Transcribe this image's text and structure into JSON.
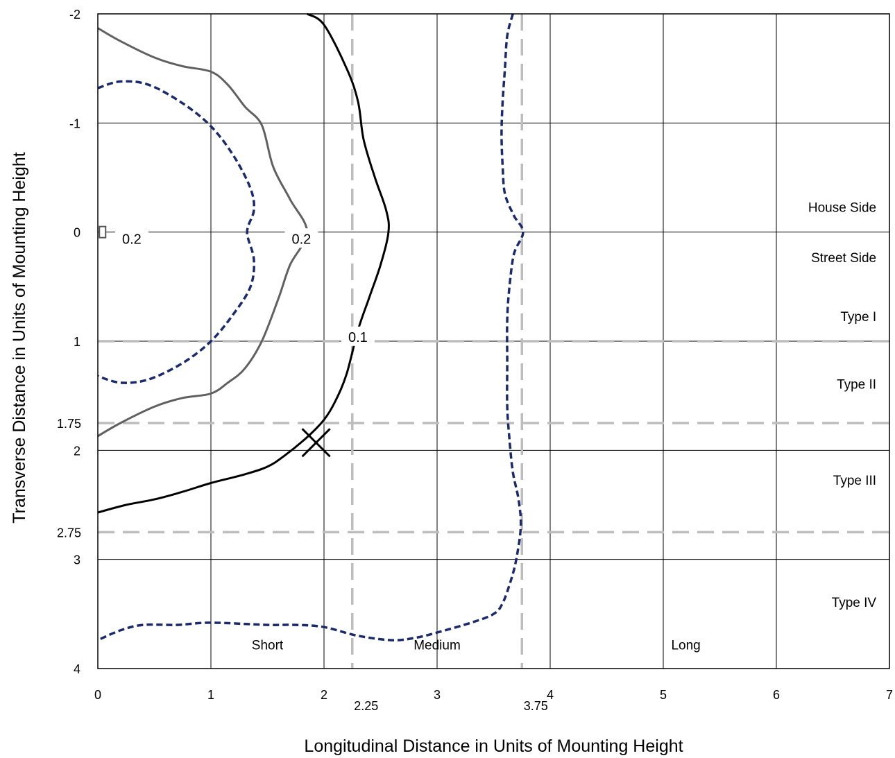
{
  "chart_data": {
    "type": "line",
    "xlabel": "Longitudinal Distance in Units of Mounting Height",
    "ylabel": "Transverse Distance in Units of Mounting Height",
    "xlim": [
      0,
      7
    ],
    "ylim": [
      -2,
      4
    ],
    "y_axis_inverted": true,
    "grid": true,
    "x_ticks": [
      "0",
      "1",
      "2",
      "3",
      "4",
      "5",
      "6",
      "7"
    ],
    "y_ticks": [
      "-2",
      "-1",
      "0",
      "1",
      "2",
      "3",
      "4"
    ],
    "x_extra_ticks": [
      {
        "value": 2.25,
        "label": "2.25"
      },
      {
        "value": 3.75,
        "label": "3.75"
      }
    ],
    "y_extra_ticks": [
      {
        "value": 1.75,
        "label": "1.75"
      },
      {
        "value": 2.75,
        "label": "2.75"
      }
    ],
    "x_reference_lines": [
      2.25,
      3.75
    ],
    "y_reference_lines": [
      1,
      1.75,
      2.75
    ],
    "region_labels": [
      {
        "text": "House Side",
        "x": 6.7,
        "y": -0.23
      },
      {
        "text": "Street Side",
        "x": 6.7,
        "y": 0.23
      },
      {
        "text": "Type I",
        "x": 6.7,
        "y": 0.77
      },
      {
        "text": "Type II",
        "x": 6.7,
        "y": 1.39
      },
      {
        "text": "Type III",
        "x": 6.7,
        "y": 2.27
      },
      {
        "text": "Type IV",
        "x": 6.7,
        "y": 3.39
      },
      {
        "text": "Short",
        "x": 1.5,
        "y": 3.78
      },
      {
        "text": "Medium",
        "x": 3.0,
        "y": 3.78
      },
      {
        "text": "Long",
        "x": 5.2,
        "y": 3.78
      }
    ],
    "contour_labels": [
      {
        "text": "0.2",
        "x": 0.3,
        "y": 0.08
      },
      {
        "text": "0.2",
        "x": 1.8,
        "y": 0.08
      },
      {
        "text": "0.1",
        "x": 2.3,
        "y": 0.98
      }
    ],
    "marker": {
      "shape": "x",
      "x": 1.93,
      "y": 1.93
    },
    "luminaire_marker": {
      "x": 0.02,
      "y": 0
    },
    "series": [
      {
        "color": "#1b2a6b",
        "dash": "dotted",
        "width": 3.5,
        "points": [
          [
            0,
            -1.32
          ],
          [
            0.2,
            -1.38
          ],
          [
            0.45,
            -1.35
          ],
          [
            0.75,
            -1.18
          ],
          [
            1.0,
            -0.97
          ],
          [
            1.2,
            -0.7
          ],
          [
            1.35,
            -0.4
          ],
          [
            1.38,
            -0.2
          ],
          [
            1.32,
            0
          ],
          [
            1.38,
            0.25
          ],
          [
            1.35,
            0.5
          ],
          [
            1.2,
            0.75
          ],
          [
            1.0,
            1.0
          ],
          [
            0.75,
            1.2
          ],
          [
            0.45,
            1.35
          ],
          [
            0.2,
            1.38
          ],
          [
            0,
            1.32
          ]
        ]
      },
      {
        "color": "#606060",
        "dash": "solid",
        "width": 3,
        "points": [
          [
            0,
            -1.87
          ],
          [
            0.2,
            -1.75
          ],
          [
            0.5,
            -1.6
          ],
          [
            0.75,
            -1.52
          ],
          [
            1.0,
            -1.47
          ],
          [
            1.15,
            -1.35
          ],
          [
            1.3,
            -1.15
          ],
          [
            1.45,
            -0.98
          ],
          [
            1.55,
            -0.6
          ],
          [
            1.7,
            -0.3
          ],
          [
            1.85,
            0
          ],
          [
            1.7,
            0.3
          ],
          [
            1.6,
            0.6
          ],
          [
            1.45,
            1.0
          ],
          [
            1.3,
            1.25
          ],
          [
            1.15,
            1.38
          ],
          [
            1.0,
            1.48
          ],
          [
            0.75,
            1.52
          ],
          [
            0.5,
            1.6
          ],
          [
            0.2,
            1.75
          ],
          [
            0,
            1.87
          ]
        ]
      },
      {
        "color": "#000000",
        "dash": "solid",
        "width": 3,
        "points": [
          [
            1.85,
            -2.0
          ],
          [
            2.0,
            -1.9
          ],
          [
            2.2,
            -1.5
          ],
          [
            2.3,
            -1.2
          ],
          [
            2.35,
            -0.85
          ],
          [
            2.45,
            -0.5
          ],
          [
            2.55,
            -0.2
          ],
          [
            2.57,
            0
          ],
          [
            2.5,
            0.3
          ],
          [
            2.4,
            0.6
          ],
          [
            2.3,
            0.9
          ],
          [
            2.2,
            1.3
          ],
          [
            2.1,
            1.55
          ],
          [
            2.0,
            1.72
          ],
          [
            1.85,
            1.88
          ],
          [
            1.65,
            2.05
          ],
          [
            1.5,
            2.15
          ],
          [
            1.3,
            2.22
          ],
          [
            1.0,
            2.3
          ],
          [
            0.75,
            2.38
          ],
          [
            0.5,
            2.45
          ],
          [
            0.25,
            2.5
          ],
          [
            0,
            2.57
          ]
        ]
      },
      {
        "color": "#1b2a6b",
        "dash": "dotted",
        "width": 3.5,
        "points": [
          [
            3.67,
            -2.0
          ],
          [
            3.62,
            -1.8
          ],
          [
            3.6,
            -1.5
          ],
          [
            3.58,
            -1.2
          ],
          [
            3.57,
            -0.9
          ],
          [
            3.58,
            -0.6
          ],
          [
            3.6,
            -0.35
          ],
          [
            3.68,
            -0.15
          ],
          [
            3.76,
            0
          ],
          [
            3.68,
            0.2
          ],
          [
            3.64,
            0.5
          ],
          [
            3.62,
            0.8
          ],
          [
            3.62,
            1.2
          ],
          [
            3.62,
            1.6
          ],
          [
            3.64,
            1.9
          ],
          [
            3.67,
            2.2
          ],
          [
            3.72,
            2.45
          ],
          [
            3.74,
            2.7
          ],
          [
            3.7,
            3.0
          ],
          [
            3.65,
            3.2
          ],
          [
            3.58,
            3.4
          ],
          [
            3.5,
            3.5
          ],
          [
            3.3,
            3.58
          ],
          [
            3.0,
            3.67
          ],
          [
            2.8,
            3.72
          ],
          [
            2.6,
            3.74
          ],
          [
            2.3,
            3.7
          ],
          [
            2.0,
            3.62
          ],
          [
            1.75,
            3.6
          ],
          [
            1.5,
            3.6
          ],
          [
            1.0,
            3.58
          ],
          [
            0.7,
            3.6
          ],
          [
            0.4,
            3.6
          ],
          [
            0.2,
            3.65
          ],
          [
            0,
            3.74
          ]
        ]
      }
    ]
  }
}
